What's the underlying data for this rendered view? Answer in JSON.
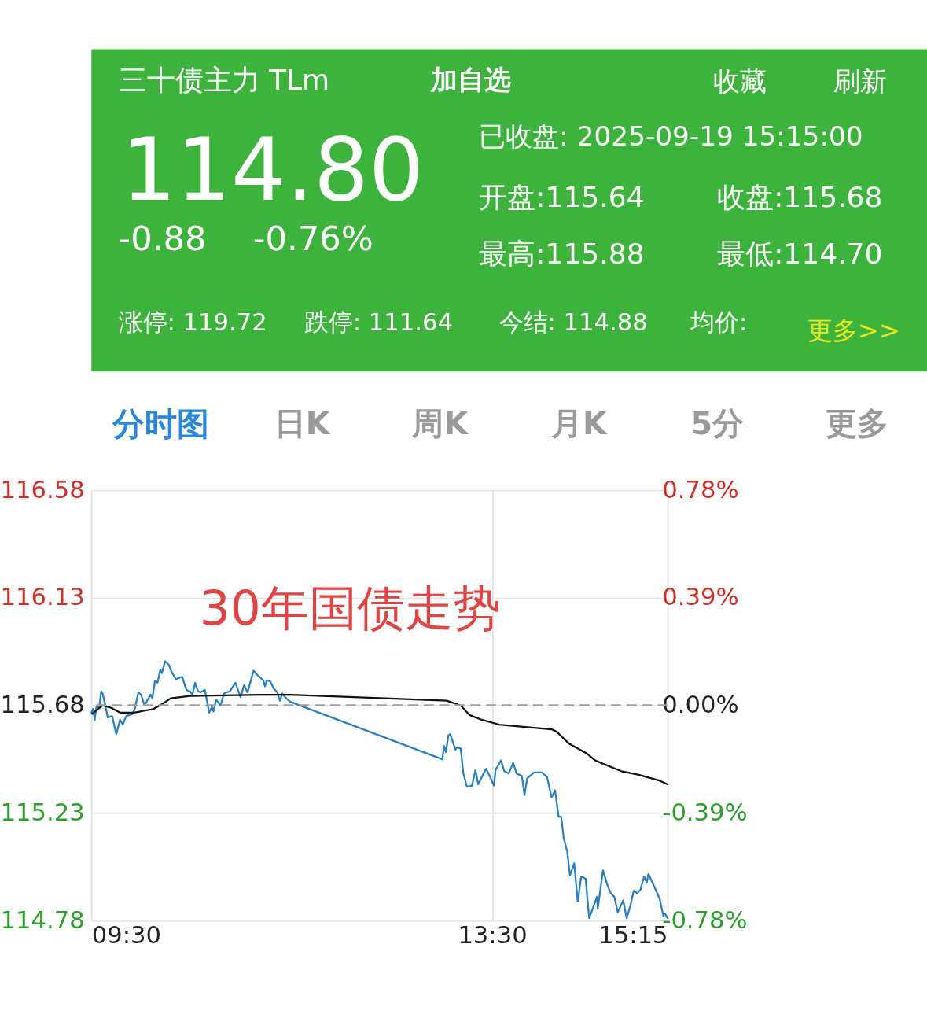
{
  "chart_data": [
    {
      "type": "other",
      "title": "三十债主力 TLm",
      "annotations": [
        "加自选",
        "收藏",
        "刷新",
        "114.80",
        "-0.88",
        "-0.76%",
        "已收盘: 2025-09-19 15:15:00",
        "开盘:115.64",
        "收盘:115.68",
        "最高:115.88",
        "最低:114.70",
        "涨停: 119.72",
        "跌停: 111.64",
        "今结: 114.88",
        "均价:",
        "更多>>"
      ]
    },
    {
      "type": "other",
      "annotations": [
        "分时图",
        "日K",
        "周K",
        "月K",
        "5分",
        "更多"
      ]
    },
    {
      "type": "line",
      "annotations": [
        "30年国债走势"
      ],
      "xlim": [
        9.5,
        15.25
      ],
      "xticks": [
        {
          "value": 9.5,
          "label": "09:30"
        },
        {
          "value": 13.5,
          "label": "13:30"
        },
        {
          "value": 15.25,
          "label": "15:15"
        }
      ],
      "ylim": [
        114.78,
        116.58
      ],
      "yticks": [
        114.78,
        115.23,
        115.68,
        116.13,
        116.58
      ],
      "y2lim": [
        -0.78,
        0.78
      ],
      "y2ticks": [
        {
          "value": -0.78,
          "label": "-0.78%"
        },
        {
          "value": -0.39,
          "label": "-0.39%"
        },
        {
          "value": 0,
          "label": "0.00%"
        },
        {
          "value": 0.39,
          "label": "0.39%"
        },
        {
          "value": 0.78,
          "label": "0.78%"
        }
      ],
      "grid": true,
      "ref_lines": [
        {
          "axis": "y2",
          "value": 0,
          "color": "#a0a0a0",
          "line_style": "dashed"
        }
      ],
      "series": [
        {
          "color": "#2a7fbf",
          "x": [
            9.5,
            9.515,
            9.533,
            9.55,
            9.577,
            9.598,
            9.612,
            9.638,
            9.663,
            9.707,
            9.748,
            9.785,
            9.812,
            9.847,
            9.908,
            9.933,
            9.968,
            9.995,
            10.03,
            10.09,
            10.108,
            10.135,
            10.16,
            10.187,
            10.203,
            10.235,
            10.273,
            10.3,
            10.343,
            10.405,
            10.448,
            10.483,
            10.508,
            10.535,
            10.562,
            10.587,
            10.632,
            10.657,
            10.675,
            10.702,
            10.718,
            10.745,
            10.788,
            10.823,
            10.883,
            10.937,
            10.988,
            11.023,
            11.058,
            11.118,
            11.162,
            11.215,
            11.232,
            11.25,
            11.285,
            11.32,
            11.355,
            11.38,
            11.407,
            11.442,
            11.485,
            13.002,
            13.02,
            13.037,
            13.063,
            13.08,
            13.133,
            13.15,
            13.185,
            13.212,
            13.247,
            13.298,
            13.333,
            13.36,
            13.395,
            13.438,
            13.463,
            13.517,
            13.533,
            13.587,
            13.62,
            13.665,
            13.708,
            13.743,
            13.795,
            13.822,
            13.848,
            13.917,
            13.995,
            14.048,
            14.092,
            14.127,
            14.162,
            14.188,
            14.213,
            14.248,
            14.275,
            14.318,
            14.353,
            14.388,
            14.432,
            14.467,
            14.502,
            14.545,
            14.553,
            14.605,
            14.648,
            14.683,
            14.718,
            14.753,
            14.807,
            14.842,
            14.877,
            14.912,
            14.947,
            14.98,
            15.015,
            15.042,
            15.058,
            15.12,
            15.172,
            15.207,
            15.223,
            15.25
          ],
          "values": [
            115.65,
            115.665,
            115.62,
            115.675,
            115.67,
            115.74,
            115.73,
            115.68,
            115.63,
            115.635,
            115.56,
            115.62,
            115.6,
            115.635,
            115.645,
            115.665,
            115.735,
            115.725,
            115.68,
            115.725,
            115.71,
            115.785,
            115.775,
            115.83,
            115.815,
            115.865,
            115.85,
            115.82,
            115.79,
            115.8,
            115.745,
            115.74,
            115.725,
            115.775,
            115.74,
            115.735,
            115.745,
            115.69,
            115.65,
            115.675,
            115.655,
            115.705,
            115.68,
            115.73,
            115.74,
            115.775,
            115.715,
            115.765,
            115.735,
            115.825,
            115.805,
            115.785,
            115.76,
            115.785,
            115.78,
            115.75,
            115.735,
            115.7,
            115.73,
            115.71,
            115.695,
            115.455,
            115.51,
            115.485,
            115.555,
            115.56,
            115.495,
            115.505,
            115.5,
            115.395,
            115.34,
            115.345,
            115.41,
            115.35,
            115.38,
            115.415,
            115.395,
            115.345,
            115.41,
            115.45,
            115.405,
            115.395,
            115.44,
            115.395,
            115.385,
            115.305,
            115.375,
            115.4,
            115.4,
            115.38,
            115.295,
            115.325,
            115.215,
            115.215,
            115.125,
            115.07,
            114.97,
            115.02,
            114.86,
            114.965,
            114.955,
            114.79,
            114.83,
            114.88,
            114.83,
            114.99,
            114.93,
            114.895,
            114.88,
            114.815,
            114.865,
            114.79,
            114.84,
            114.905,
            114.895,
            114.91,
            114.965,
            114.94,
            114.975,
            114.92,
            114.87,
            114.8,
            114.81,
            114.79
          ]
        },
        {
          "color": "#111111",
          "x": [
            9.507,
            9.612,
            9.698,
            9.785,
            9.925,
            10.117,
            10.203,
            10.292,
            10.483,
            11.18,
            11.493,
            13.045,
            13.185,
            13.273,
            13.395,
            13.568,
            13.83,
            14.092,
            14.143,
            14.267,
            14.44,
            14.527,
            14.788,
            14.963,
            15.172,
            15.25
          ],
          "values": [
            115.645,
            115.68,
            115.67,
            115.65,
            115.65,
            115.665,
            115.685,
            115.71,
            115.72,
            115.725,
            115.725,
            115.7,
            115.68,
            115.64,
            115.62,
            115.6,
            115.59,
            115.58,
            115.57,
            115.52,
            115.48,
            115.45,
            115.405,
            115.39,
            115.365,
            115.35
          ]
        }
      ]
    }
  ]
}
